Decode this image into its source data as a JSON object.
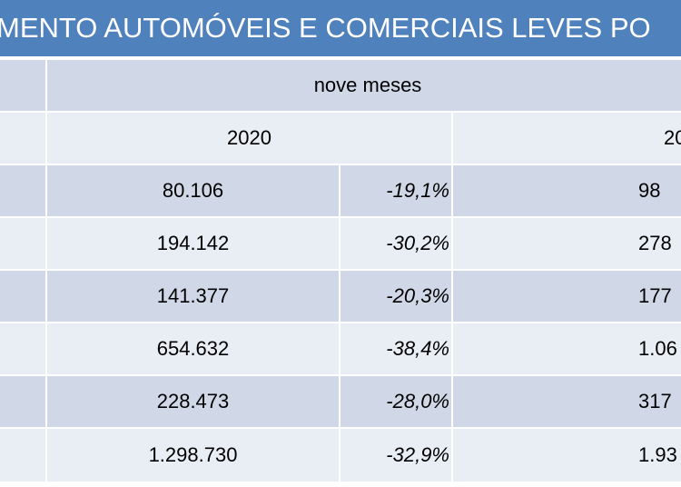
{
  "header": {
    "title": "MENTO AUTOMÓVEIS E COMERCIAIS LEVES PO"
  },
  "table": {
    "group_header": "nove meses",
    "year_headers": [
      "2020",
      "20"
    ],
    "rows": [
      [
        "80.106",
        "-19,1%",
        "98"
      ],
      [
        "194.142",
        "-30,2%",
        "278"
      ],
      [
        "141.377",
        "-20,3%",
        "177"
      ],
      [
        "654.632",
        "-38,4%",
        "1.06"
      ],
      [
        "228.473",
        "-28,0%",
        "317"
      ],
      [
        "1.298.730",
        "-32,9%",
        "1.93"
      ]
    ]
  }
}
